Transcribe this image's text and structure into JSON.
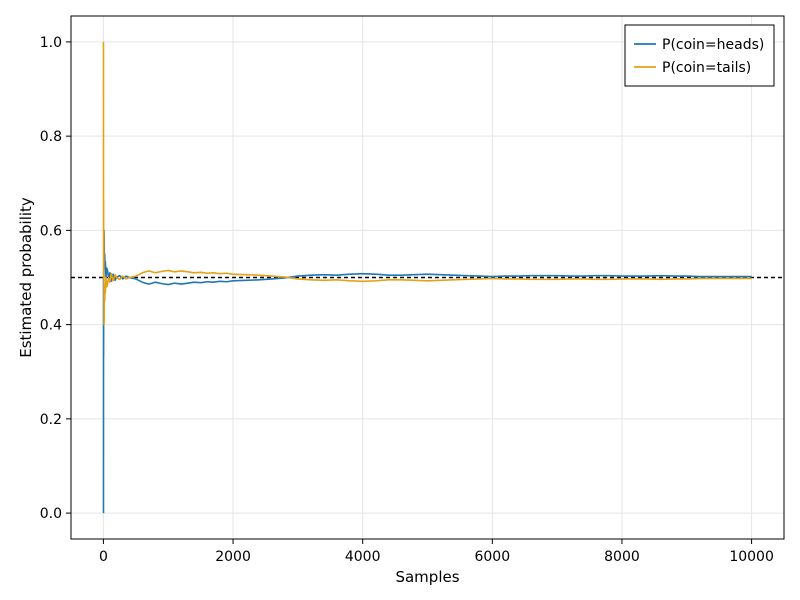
{
  "chart_data": {
    "type": "line",
    "title": "",
    "xlabel": "Samples",
    "ylabel": "Estimated probability",
    "xlim": [
      -500,
      10500
    ],
    "ylim": [
      -0.055,
      1.055
    ],
    "xticks": [
      0,
      2000,
      4000,
      6000,
      8000,
      10000
    ],
    "xtick_labels": [
      "0",
      "2000",
      "4000",
      "6000",
      "8000",
      "10000"
    ],
    "yticks": [
      0.0,
      0.2,
      0.4,
      0.6,
      0.8,
      1.0
    ],
    "ytick_labels": [
      "0.0",
      "0.2",
      "0.4",
      "0.6",
      "0.8",
      "1.0"
    ],
    "grid": true,
    "legend_position": "top-right",
    "reference_line": {
      "y": 0.5,
      "style": "dashed",
      "color": "#000000"
    },
    "series": [
      {
        "name": "P(coin=heads)",
        "color": "#1f77b4",
        "x": [
          1,
          2,
          3,
          4,
          5,
          6,
          8,
          10,
          12,
          15,
          20,
          25,
          30,
          40,
          50,
          60,
          80,
          100,
          120,
          150,
          180,
          200,
          250,
          300,
          350,
          400,
          500,
          600,
          700,
          800,
          900,
          1000,
          1100,
          1200,
          1300,
          1400,
          1500,
          1600,
          1700,
          1800,
          1900,
          2000,
          2200,
          2400,
          2600,
          2800,
          3000,
          3200,
          3400,
          3600,
          3800,
          4000,
          4200,
          4400,
          4600,
          4800,
          5000,
          5200,
          5400,
          5600,
          5800,
          6000,
          6200,
          6400,
          6600,
          6800,
          7000,
          7200,
          7400,
          7600,
          7800,
          8000,
          8200,
          8400,
          8600,
          8800,
          9000,
          9200,
          9400,
          9600,
          9800,
          10000
        ],
        "values": [
          0.0,
          0.5,
          0.333,
          0.5,
          0.4,
          0.5,
          0.5,
          0.6,
          0.583,
          0.533,
          0.55,
          0.52,
          0.533,
          0.5,
          0.52,
          0.517,
          0.5,
          0.51,
          0.492,
          0.507,
          0.494,
          0.5,
          0.504,
          0.497,
          0.503,
          0.5,
          0.497,
          0.49,
          0.486,
          0.49,
          0.487,
          0.485,
          0.488,
          0.486,
          0.488,
          0.49,
          0.489,
          0.491,
          0.49,
          0.492,
          0.491,
          0.493,
          0.494,
          0.495,
          0.497,
          0.499,
          0.503,
          0.505,
          0.506,
          0.505,
          0.507,
          0.508,
          0.507,
          0.505,
          0.505,
          0.506,
          0.507,
          0.506,
          0.505,
          0.504,
          0.503,
          0.502,
          0.503,
          0.503,
          0.504,
          0.504,
          0.504,
          0.503,
          0.503,
          0.504,
          0.504,
          0.503,
          0.503,
          0.503,
          0.504,
          0.503,
          0.503,
          0.502,
          0.502,
          0.502,
          0.502,
          0.502
        ]
      },
      {
        "name": "P(coin=tails)",
        "color": "#e6a117",
        "x": [
          1,
          2,
          3,
          4,
          5,
          6,
          8,
          10,
          12,
          15,
          20,
          25,
          30,
          40,
          50,
          60,
          80,
          100,
          120,
          150,
          180,
          200,
          250,
          300,
          350,
          400,
          500,
          600,
          700,
          800,
          900,
          1000,
          1100,
          1200,
          1300,
          1400,
          1500,
          1600,
          1700,
          1800,
          1900,
          2000,
          2200,
          2400,
          2600,
          2800,
          3000,
          3200,
          3400,
          3600,
          3800,
          4000,
          4200,
          4400,
          4600,
          4800,
          5000,
          5200,
          5400,
          5600,
          5800,
          6000,
          6200,
          6400,
          6600,
          6800,
          7000,
          7200,
          7400,
          7600,
          7800,
          8000,
          8200,
          8400,
          8600,
          8800,
          9000,
          9200,
          9400,
          9600,
          9800,
          10000
        ],
        "values": [
          1.0,
          0.5,
          0.667,
          0.5,
          0.6,
          0.5,
          0.5,
          0.4,
          0.417,
          0.467,
          0.45,
          0.48,
          0.467,
          0.5,
          0.48,
          0.483,
          0.5,
          0.49,
          0.508,
          0.493,
          0.506,
          0.5,
          0.496,
          0.503,
          0.497,
          0.5,
          0.503,
          0.51,
          0.514,
          0.51,
          0.513,
          0.515,
          0.512,
          0.514,
          0.512,
          0.51,
          0.511,
          0.509,
          0.51,
          0.508,
          0.509,
          0.507,
          0.506,
          0.505,
          0.503,
          0.501,
          0.497,
          0.495,
          0.494,
          0.495,
          0.493,
          0.492,
          0.493,
          0.495,
          0.495,
          0.494,
          0.493,
          0.494,
          0.495,
          0.496,
          0.497,
          0.498,
          0.497,
          0.497,
          0.496,
          0.496,
          0.496,
          0.497,
          0.497,
          0.496,
          0.496,
          0.497,
          0.497,
          0.497,
          0.496,
          0.497,
          0.497,
          0.498,
          0.498,
          0.498,
          0.498,
          0.498
        ]
      }
    ]
  }
}
